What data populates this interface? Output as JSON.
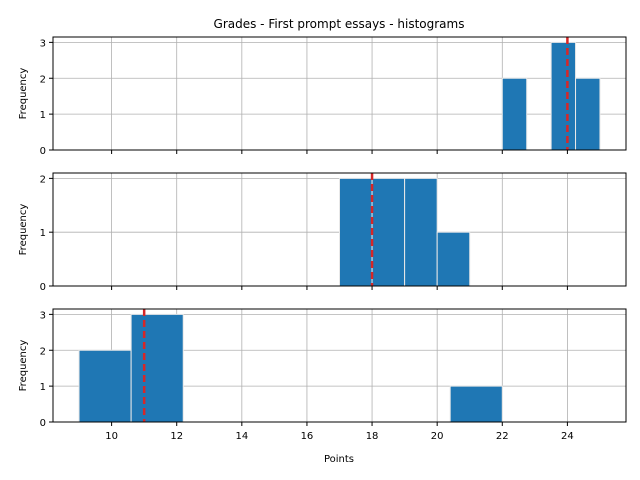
{
  "chart_data": {
    "type": "bar",
    "title": "Grades - First prompt essays - histograms",
    "xlabel": "Points",
    "xlim": [
      8.2,
      25.8
    ],
    "xticks": [
      10,
      12,
      14,
      16,
      18,
      20,
      22,
      24
    ],
    "grid": true,
    "bar_color": "#1f77b4",
    "bar_edge_color": "#e8e8e8",
    "marker_color": "#d62728",
    "subplots": [
      {
        "ylabel": "Frequency",
        "ylim": [
          0,
          3.15
        ],
        "yticks": [
          0,
          1,
          2,
          3
        ],
        "bins": [
          {
            "x0": 22.0,
            "x1": 22.75,
            "count": 2
          },
          {
            "x0": 23.5,
            "x1": 24.25,
            "count": 3
          },
          {
            "x0": 24.25,
            "x1": 25.0,
            "count": 2
          }
        ],
        "marker_x": 24
      },
      {
        "ylabel": "Frequency",
        "ylim": [
          0,
          2.1
        ],
        "yticks": [
          0,
          1,
          2
        ],
        "bins": [
          {
            "x0": 17.0,
            "x1": 18.0,
            "count": 2
          },
          {
            "x0": 18.0,
            "x1": 19.0,
            "count": 2
          },
          {
            "x0": 19.0,
            "x1": 20.0,
            "count": 2
          },
          {
            "x0": 20.0,
            "x1": 21.0,
            "count": 1
          }
        ],
        "marker_x": 18
      },
      {
        "ylabel": "Frequency",
        "ylim": [
          0,
          3.15
        ],
        "yticks": [
          0,
          1,
          2,
          3
        ],
        "bins": [
          {
            "x0": 9.0,
            "x1": 10.6,
            "count": 2
          },
          {
            "x0": 10.6,
            "x1": 12.2,
            "count": 3
          },
          {
            "x0": 20.4,
            "x1": 22.0,
            "count": 1
          }
        ],
        "marker_x": 11
      }
    ]
  }
}
